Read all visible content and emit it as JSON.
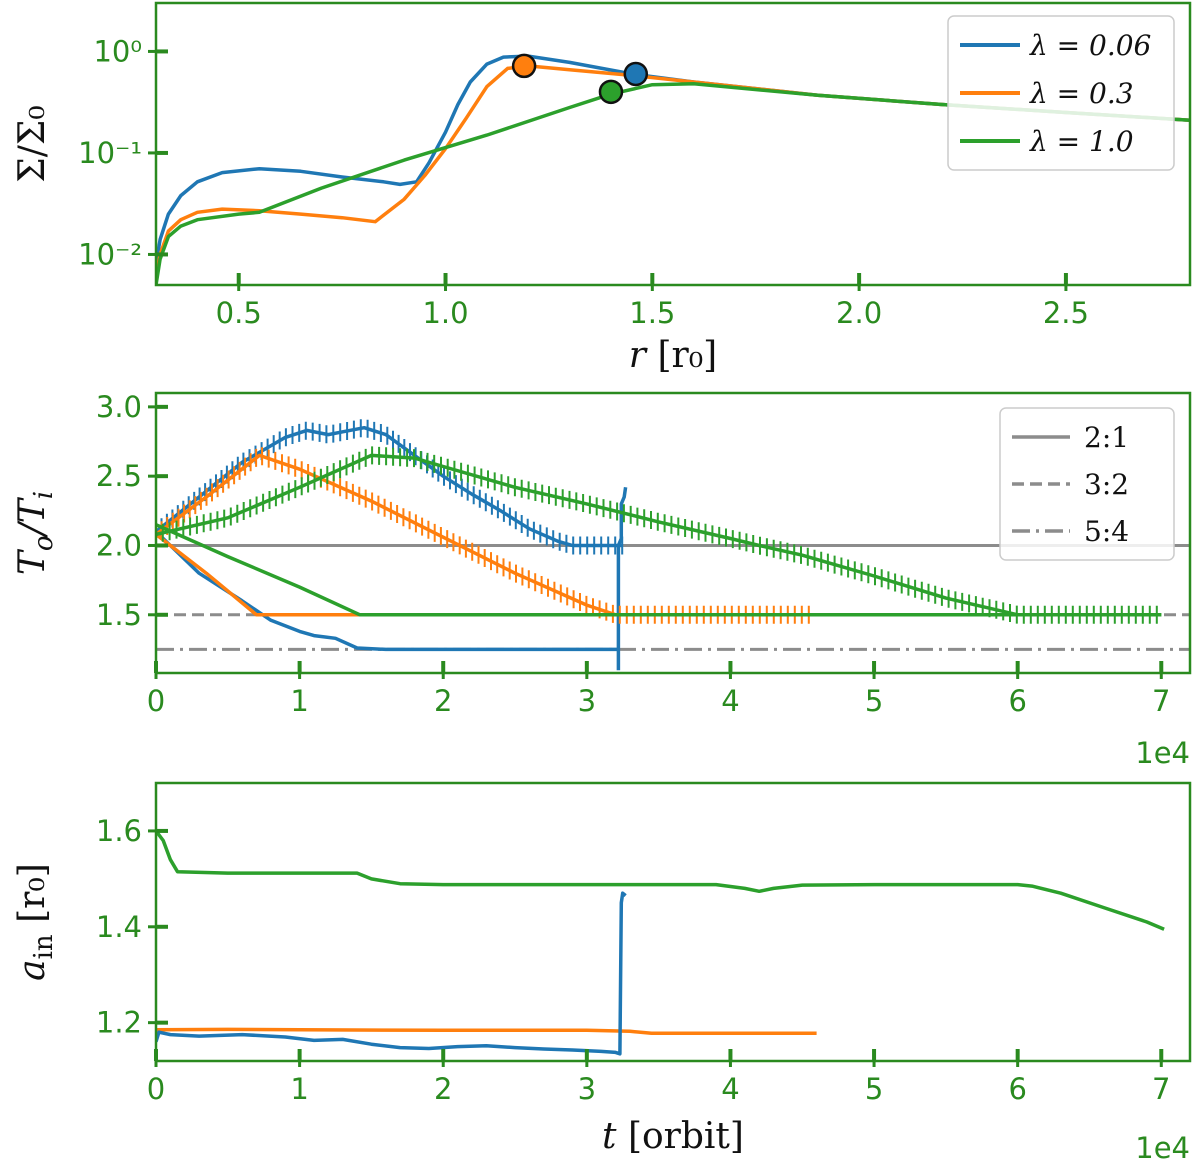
{
  "colors": {
    "blue": "#1f77b4",
    "orange": "#ff7f0e",
    "green": "#2ca02c",
    "axis": "#2a8a1f",
    "ref_line": "#8c8c8c"
  },
  "chart_data": [
    {
      "id": "surface-density",
      "type": "line",
      "yscale": "log",
      "xlim": [
        0.3,
        2.8
      ],
      "ylim": [
        0.005,
        3.0
      ],
      "xticks": [
        0.5,
        1.0,
        1.5,
        2.0,
        2.5
      ],
      "xtick_labels": [
        "0.5",
        "1.0",
        "1.5",
        "2.0",
        "2.5"
      ],
      "yticks": [
        0.01,
        0.1,
        1
      ],
      "ytick_labels": [
        "10⁻²",
        "10⁻¹",
        "10⁰"
      ],
      "xlabel_var": "r",
      "xlabel_unit": " [r₀]",
      "ylabel": "Σ/Σ₀",
      "legend_position": "top-right",
      "series": [
        {
          "name": "λ = 0.06",
          "color": "blue",
          "x": [
            0.3,
            0.31,
            0.33,
            0.36,
            0.4,
            0.46,
            0.55,
            0.65,
            0.75,
            0.85,
            0.89,
            0.93,
            0.96,
            1.0,
            1.03,
            1.06,
            1.1,
            1.14,
            1.2,
            1.3,
            1.45,
            1.6,
            1.9,
            2.2,
            2.5,
            2.8
          ],
          "y": [
            0.008,
            0.014,
            0.025,
            0.038,
            0.052,
            0.064,
            0.07,
            0.066,
            0.058,
            0.052,
            0.049,
            0.052,
            0.08,
            0.16,
            0.3,
            0.5,
            0.75,
            0.88,
            0.9,
            0.78,
            0.6,
            0.5,
            0.37,
            0.3,
            0.25,
            0.21
          ],
          "marker": {
            "x": 1.46,
            "y": 0.6
          }
        },
        {
          "name": "λ = 0.3",
          "color": "orange",
          "x": [
            0.3,
            0.31,
            0.33,
            0.36,
            0.4,
            0.46,
            0.55,
            0.65,
            0.75,
            0.83,
            0.9,
            0.95,
            1.0,
            1.05,
            1.1,
            1.15,
            1.2,
            1.3,
            1.45,
            1.6,
            1.9,
            2.2,
            2.5,
            2.8
          ],
          "y": [
            0.006,
            0.01,
            0.017,
            0.022,
            0.026,
            0.028,
            0.027,
            0.025,
            0.023,
            0.021,
            0.035,
            0.06,
            0.11,
            0.22,
            0.45,
            0.68,
            0.72,
            0.66,
            0.58,
            0.5,
            0.37,
            0.3,
            0.25,
            0.21
          ],
          "marker": {
            "x": 1.19,
            "y": 0.72
          }
        },
        {
          "name": "λ = 1.0",
          "color": "green",
          "x": [
            0.3,
            0.31,
            0.33,
            0.36,
            0.4,
            0.5,
            0.55,
            0.7,
            0.9,
            1.1,
            1.3,
            1.4,
            1.5,
            1.6,
            1.9,
            2.2,
            2.5,
            2.8
          ],
          "y": [
            0.005,
            0.009,
            0.015,
            0.019,
            0.022,
            0.025,
            0.026,
            0.045,
            0.085,
            0.15,
            0.28,
            0.38,
            0.47,
            0.48,
            0.37,
            0.3,
            0.25,
            0.21
          ],
          "marker": {
            "x": 1.4,
            "y": 0.4
          }
        }
      ]
    },
    {
      "id": "period-ratio",
      "type": "line",
      "xlim": [
        0,
        7.2
      ],
      "ylim": [
        1.08,
        3.1
      ],
      "xticks": [
        0,
        1,
        2,
        3,
        4,
        5,
        6,
        7
      ],
      "xtick_labels": [
        "0",
        "1",
        "2",
        "3",
        "4",
        "5",
        "6",
        "7"
      ],
      "yticks": [
        1.5,
        2.0,
        2.5,
        3.0
      ],
      "ytick_labels": [
        "1.5",
        "2.0",
        "2.5",
        "3.0"
      ],
      "x_offset_label": "1e4",
      "ylabel_var": "T",
      "ylabel_sub1": "o",
      "ylabel_sub2": "i",
      "legend_position": "top-right",
      "reference_lines": [
        {
          "name": "2:1",
          "value": 2.0,
          "style": "solid"
        },
        {
          "name": "3:2",
          "value": 1.5,
          "style": "dashed"
        },
        {
          "name": "5:4",
          "value": 1.25,
          "style": "dashdot"
        }
      ],
      "series": [
        {
          "name": "blue-outer",
          "color": "blue",
          "hatched": true,
          "x": [
            0,
            0.3,
            0.6,
            0.9,
            1.05,
            1.2,
            1.3,
            1.45,
            1.6,
            1.8,
            2.0,
            2.2,
            2.4,
            2.6,
            2.8,
            2.9,
            3.0,
            3.1,
            3.2,
            3.25
          ],
          "y": [
            2.1,
            2.35,
            2.6,
            2.78,
            2.83,
            2.8,
            2.82,
            2.85,
            2.8,
            2.65,
            2.5,
            2.37,
            2.25,
            2.12,
            2.03,
            2.0,
            2.0,
            2.0,
            2.0,
            2.0
          ]
        },
        {
          "name": "blue-inner",
          "color": "blue",
          "hatched": false,
          "x": [
            0,
            0.3,
            0.6,
            0.8,
            1.0,
            1.1,
            1.25,
            1.4,
            1.6,
            2.0,
            2.5,
            3.0,
            3.22
          ],
          "y": [
            2.1,
            1.8,
            1.6,
            1.46,
            1.38,
            1.35,
            1.33,
            1.26,
            1.25,
            1.25,
            1.25,
            1.25,
            1.25
          ]
        },
        {
          "name": "blue-jump",
          "color": "blue",
          "hatched": false,
          "x": [
            3.22,
            3.22,
            3.24,
            3.24,
            3.26,
            3.27
          ],
          "y": [
            1.1,
            2.0,
            2.05,
            2.3,
            2.35,
            2.42
          ]
        },
        {
          "name": "orange-outer",
          "color": "orange",
          "hatched": true,
          "x": [
            0,
            0.35,
            0.72,
            1.0,
            1.5,
            2.0,
            2.5,
            3.0,
            3.2,
            3.5,
            4.0,
            4.57
          ],
          "y": [
            2.08,
            2.35,
            2.65,
            2.55,
            2.32,
            2.06,
            1.8,
            1.57,
            1.5,
            1.5,
            1.5,
            1.5
          ]
        },
        {
          "name": "orange-inner",
          "color": "orange",
          "hatched": false,
          "x": [
            0,
            0.35,
            0.7,
            1.0,
            2.0,
            3.0,
            4.57
          ],
          "y": [
            2.08,
            1.8,
            1.5,
            1.5,
            1.5,
            1.5,
            1.5
          ]
        },
        {
          "name": "green-outer",
          "color": "green",
          "hatched": true,
          "x": [
            0,
            0.5,
            1.0,
            1.5,
            1.8,
            2.0,
            2.5,
            3.0,
            3.5,
            4.0,
            4.2,
            4.5,
            5.0,
            5.5,
            6.0,
            6.5,
            7.0
          ],
          "y": [
            2.08,
            2.2,
            2.42,
            2.65,
            2.63,
            2.57,
            2.42,
            2.3,
            2.17,
            2.05,
            2.0,
            1.93,
            1.78,
            1.62,
            1.5,
            1.5,
            1.5
          ]
        },
        {
          "name": "green-inner",
          "color": "green",
          "hatched": false,
          "x": [
            0,
            0.5,
            1.0,
            1.42,
            2.0,
            3.0,
            4.0,
            5.0,
            6.0,
            7.0
          ],
          "y": [
            2.15,
            1.92,
            1.7,
            1.5,
            1.5,
            1.5,
            1.5,
            1.5,
            1.5,
            1.5
          ]
        }
      ]
    },
    {
      "id": "inner-semimajor",
      "type": "line",
      "xlim": [
        0,
        7.2
      ],
      "ylim": [
        1.12,
        1.7
      ],
      "xticks": [
        0,
        1,
        2,
        3,
        4,
        5,
        6,
        7
      ],
      "xtick_labels": [
        "0",
        "1",
        "2",
        "3",
        "4",
        "5",
        "6",
        "7"
      ],
      "yticks": [
        1.2,
        1.4,
        1.6
      ],
      "ytick_labels": [
        "1.2",
        "1.4",
        "1.6"
      ],
      "x_offset_label": "1e4",
      "xlabel_var": "t",
      "xlabel_unit": " [orbit]",
      "ylabel_var": "a",
      "ylabel_sub": "in",
      "ylabel_unit": " [r₀]",
      "series": [
        {
          "name": "green",
          "color": "green",
          "x": [
            0,
            0.05,
            0.1,
            0.15,
            0.5,
            1.0,
            1.4,
            1.5,
            1.7,
            2.0,
            3.0,
            3.9,
            4.1,
            4.2,
            4.3,
            4.5,
            5.0,
            6.0,
            6.1,
            6.3,
            6.6,
            6.9,
            7.02
          ],
          "y": [
            1.6,
            1.58,
            1.54,
            1.515,
            1.512,
            1.512,
            1.512,
            1.5,
            1.49,
            1.488,
            1.488,
            1.488,
            1.48,
            1.474,
            1.48,
            1.487,
            1.488,
            1.488,
            1.485,
            1.47,
            1.44,
            1.41,
            1.395
          ]
        },
        {
          "name": "orange",
          "color": "orange",
          "x": [
            0,
            0.5,
            1.0,
            2.0,
            3.0,
            3.3,
            3.45,
            3.6,
            4.0,
            4.6
          ],
          "y": [
            1.185,
            1.186,
            1.185,
            1.184,
            1.184,
            1.182,
            1.178,
            1.178,
            1.178,
            1.178
          ]
        },
        {
          "name": "blue",
          "color": "blue",
          "x": [
            0,
            0.02,
            0.1,
            0.3,
            0.6,
            0.9,
            1.1,
            1.3,
            1.5,
            1.7,
            1.9,
            2.1,
            2.3,
            2.5,
            2.7,
            2.9,
            3.1,
            3.2,
            3.23,
            3.24,
            3.25,
            3.27
          ],
          "y": [
            1.16,
            1.18,
            1.175,
            1.172,
            1.175,
            1.17,
            1.163,
            1.165,
            1.155,
            1.148,
            1.146,
            1.15,
            1.152,
            1.148,
            1.145,
            1.143,
            1.14,
            1.138,
            1.135,
            1.45,
            1.47,
            1.465
          ]
        }
      ]
    }
  ]
}
